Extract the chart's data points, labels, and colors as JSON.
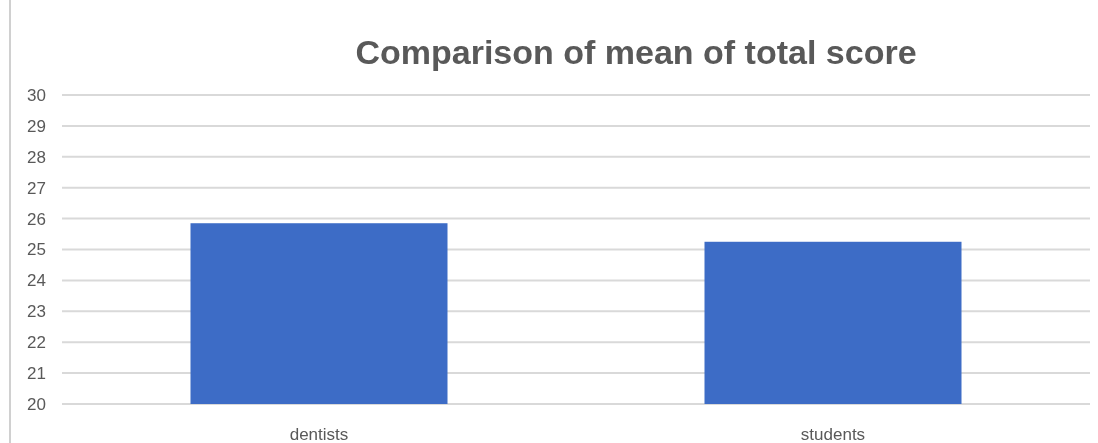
{
  "chart_data": {
    "type": "bar",
    "title": "Comparison of mean of total score",
    "categories": [
      "dentists",
      "students"
    ],
    "values": [
      25.85,
      25.25
    ],
    "color": "#3d6cc6",
    "ylim": [
      20,
      30
    ],
    "yticks": [
      20,
      21,
      22,
      23,
      24,
      25,
      26,
      27,
      28,
      29,
      30
    ],
    "grid": "y"
  }
}
